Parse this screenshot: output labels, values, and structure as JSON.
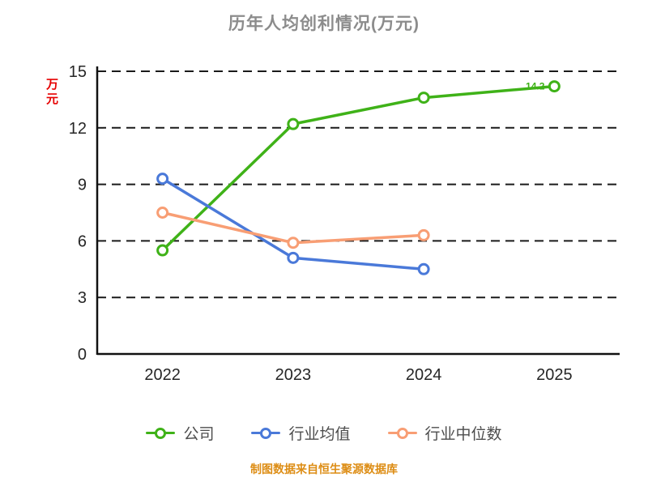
{
  "chart_data": {
    "type": "line",
    "title": "历年人均创利情况(万元)",
    "ylabel": "万元",
    "xlabel": "",
    "ylim": [
      0,
      15
    ],
    "yticks": [
      0,
      3,
      6,
      9,
      12,
      15
    ],
    "categories": [
      "2022",
      "2023",
      "2024",
      "2025"
    ],
    "series": [
      {
        "id": "company",
        "name": "公司",
        "color": "#3fb218",
        "values": [
          5.5,
          12.2,
          13.6,
          14.2
        ]
      },
      {
        "id": "industry-average",
        "name": "行业均值",
        "color": "#4a79d9",
        "values": [
          9.3,
          5.1,
          4.5,
          null
        ]
      },
      {
        "id": "industry-median",
        "name": "行业中位数",
        "color": "#f89e74",
        "values": [
          7.5,
          5.9,
          6.3,
          null
        ]
      }
    ],
    "annotation": {
      "text": "14.2",
      "series_index": 0,
      "point_index": 3
    },
    "legend_position": "bottom",
    "grid": "dashed-horizontal",
    "marker_style": "empty-circle"
  },
  "footer": {
    "text": "制图数据来自恒生聚源数据库"
  },
  "colors": {
    "title": "#8c8c8c",
    "ylabel": "#e60000",
    "tick_label": "#262626",
    "legend_text": "#4d4d4d",
    "footer": "#dd8d15",
    "axis": "#111111",
    "gridline": "#1a1a1a",
    "background": "#ffffff"
  }
}
